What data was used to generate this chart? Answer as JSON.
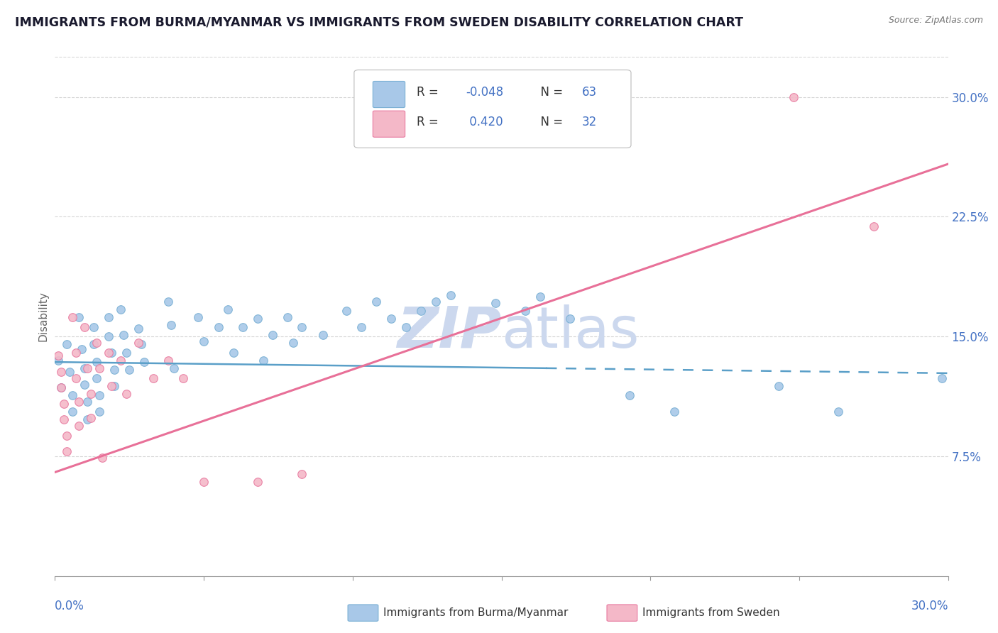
{
  "title": "IMMIGRANTS FROM BURMA/MYANMAR VS IMMIGRANTS FROM SWEDEN DISABILITY CORRELATION CHART",
  "source": "Source: ZipAtlas.com",
  "ylabel": "Disability",
  "xmin": 0.0,
  "xmax": 0.3,
  "ymin": 0.0,
  "ymax": 0.325,
  "color_burma": "#a8c8e8",
  "color_sweden": "#f4b8c8",
  "color_burma_dot": "#7ab0d4",
  "color_sweden_dot": "#e87aa0",
  "color_burma_line": "#5a9fc8",
  "color_sweden_line": "#e87098",
  "axis_label_color": "#4472c4",
  "watermark_color": "#ccd8ee",
  "grid_color": "#cccccc",
  "scatter_burma": [
    [
      0.001,
      0.135
    ],
    [
      0.002,
      0.118
    ],
    [
      0.004,
      0.145
    ],
    [
      0.005,
      0.128
    ],
    [
      0.006,
      0.113
    ],
    [
      0.006,
      0.103
    ],
    [
      0.008,
      0.162
    ],
    [
      0.009,
      0.142
    ],
    [
      0.01,
      0.13
    ],
    [
      0.01,
      0.12
    ],
    [
      0.011,
      0.109
    ],
    [
      0.011,
      0.098
    ],
    [
      0.013,
      0.156
    ],
    [
      0.013,
      0.145
    ],
    [
      0.014,
      0.134
    ],
    [
      0.014,
      0.124
    ],
    [
      0.015,
      0.113
    ],
    [
      0.015,
      0.103
    ],
    [
      0.018,
      0.162
    ],
    [
      0.018,
      0.15
    ],
    [
      0.019,
      0.14
    ],
    [
      0.02,
      0.129
    ],
    [
      0.02,
      0.119
    ],
    [
      0.022,
      0.167
    ],
    [
      0.023,
      0.151
    ],
    [
      0.024,
      0.14
    ],
    [
      0.025,
      0.129
    ],
    [
      0.028,
      0.155
    ],
    [
      0.029,
      0.145
    ],
    [
      0.03,
      0.134
    ],
    [
      0.038,
      0.172
    ],
    [
      0.039,
      0.157
    ],
    [
      0.04,
      0.13
    ],
    [
      0.048,
      0.162
    ],
    [
      0.05,
      0.147
    ],
    [
      0.055,
      0.156
    ],
    [
      0.058,
      0.167
    ],
    [
      0.06,
      0.14
    ],
    [
      0.063,
      0.156
    ],
    [
      0.068,
      0.161
    ],
    [
      0.07,
      0.135
    ],
    [
      0.073,
      0.151
    ],
    [
      0.078,
      0.162
    ],
    [
      0.08,
      0.146
    ],
    [
      0.083,
      0.156
    ],
    [
      0.09,
      0.151
    ],
    [
      0.098,
      0.166
    ],
    [
      0.103,
      0.156
    ],
    [
      0.108,
      0.172
    ],
    [
      0.113,
      0.161
    ],
    [
      0.118,
      0.156
    ],
    [
      0.123,
      0.166
    ],
    [
      0.128,
      0.172
    ],
    [
      0.133,
      0.176
    ],
    [
      0.148,
      0.171
    ],
    [
      0.158,
      0.166
    ],
    [
      0.163,
      0.175
    ],
    [
      0.173,
      0.161
    ],
    [
      0.193,
      0.113
    ],
    [
      0.208,
      0.103
    ],
    [
      0.243,
      0.119
    ],
    [
      0.263,
      0.103
    ],
    [
      0.298,
      0.124
    ]
  ],
  "scatter_sweden": [
    [
      0.001,
      0.138
    ],
    [
      0.002,
      0.128
    ],
    [
      0.002,
      0.118
    ],
    [
      0.003,
      0.108
    ],
    [
      0.003,
      0.098
    ],
    [
      0.004,
      0.088
    ],
    [
      0.004,
      0.078
    ],
    [
      0.006,
      0.162
    ],
    [
      0.007,
      0.14
    ],
    [
      0.007,
      0.124
    ],
    [
      0.008,
      0.109
    ],
    [
      0.008,
      0.094
    ],
    [
      0.01,
      0.156
    ],
    [
      0.011,
      0.13
    ],
    [
      0.012,
      0.114
    ],
    [
      0.012,
      0.099
    ],
    [
      0.014,
      0.146
    ],
    [
      0.015,
      0.13
    ],
    [
      0.016,
      0.074
    ],
    [
      0.018,
      0.14
    ],
    [
      0.019,
      0.119
    ],
    [
      0.022,
      0.135
    ],
    [
      0.024,
      0.114
    ],
    [
      0.028,
      0.146
    ],
    [
      0.033,
      0.124
    ],
    [
      0.038,
      0.135
    ],
    [
      0.043,
      0.124
    ],
    [
      0.05,
      0.059
    ],
    [
      0.068,
      0.059
    ],
    [
      0.083,
      0.064
    ],
    [
      0.248,
      0.3
    ],
    [
      0.275,
      0.219
    ]
  ],
  "burma_line_solid_end": 0.165,
  "burma_line_start_y": 0.134,
  "burma_line_end_y": 0.127,
  "sweden_line_start_y": 0.065,
  "sweden_line_end_y": 0.258
}
